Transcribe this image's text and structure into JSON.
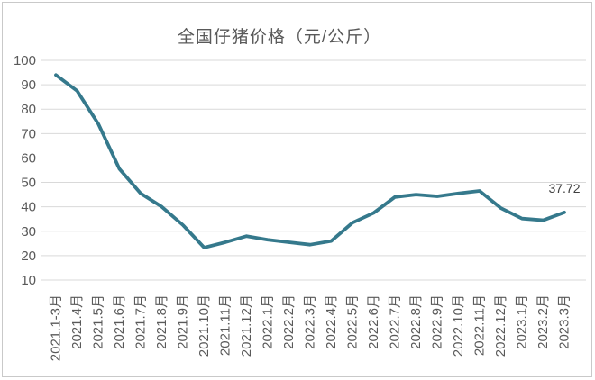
{
  "chart": {
    "title": "全国仔猪价格（元/公斤）",
    "last_point_label": "37.72",
    "colors": {
      "line": "#35798C",
      "grid": "#D9D9D9",
      "axis_text": "#595959",
      "title_text": "#595959",
      "data_label": "#3F3F3F",
      "frame_border": "#C9C9C9",
      "background": "#FFFFFF"
    }
  },
  "chart_data": {
    "type": "line",
    "title": "全国仔猪价格（元/公斤）",
    "xlabel": "",
    "ylabel": "",
    "ylim": [
      10,
      100
    ],
    "yticks": [
      100,
      90,
      80,
      70,
      60,
      50,
      40,
      30,
      20,
      10
    ],
    "grid": "horizontal-only",
    "legend": "none",
    "marker": "none",
    "categories": [
      "2021.1-3月",
      "2021.4月",
      "2021.5月",
      "2021.6月",
      "2021.7月",
      "2021.8月",
      "2021.9月",
      "2021.10月",
      "2021.11月",
      "2021.12月",
      "2022.1月",
      "2022.2月",
      "2022.3月",
      "2022.4月",
      "2022.5月",
      "2022.6月",
      "2022.7月",
      "2022.8月",
      "2022.9月",
      "2022.10月",
      "2022.11月",
      "2022.12月",
      "2023.1月",
      "2023.2月",
      "2023.3月"
    ],
    "series": [
      {
        "name": "全国仔猪价格",
        "values": [
          94,
          87.5,
          74,
          55.5,
          45.5,
          40,
          32.5,
          23.3,
          25.5,
          28,
          26.5,
          25.5,
          24.5,
          26,
          33.5,
          37.5,
          44,
          45,
          44.3,
          45.5,
          46.5,
          39.5,
          35.2,
          34.5,
          37.72
        ]
      }
    ],
    "data_labels": {
      "last_point": "37.72"
    }
  }
}
